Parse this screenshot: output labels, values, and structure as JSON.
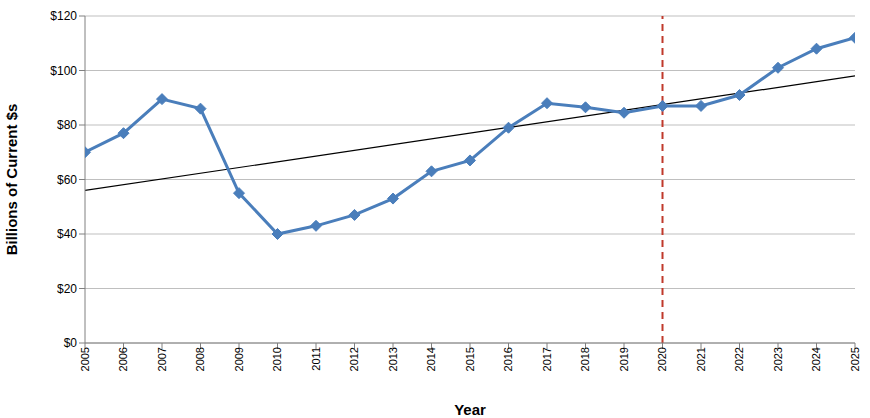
{
  "chart_data": {
    "type": "line",
    "x_label": "Year",
    "y_label": "Billions of Current $s",
    "x": [
      2005,
      2006,
      2007,
      2008,
      2009,
      2010,
      2011,
      2012,
      2013,
      2014,
      2015,
      2016,
      2017,
      2018,
      2019,
      2020,
      2021,
      2022,
      2023,
      2024,
      2025
    ],
    "values": [
      70,
      77,
      89.5,
      86,
      55,
      40,
      43,
      47,
      53,
      63,
      67,
      79,
      88,
      86.5,
      84.5,
      87,
      87,
      91,
      101,
      108,
      112
    ],
    "color": "#4a7ebb",
    "marker": "diamond",
    "xlim": [
      2005,
      2025
    ],
    "xticks": [
      2005,
      2006,
      2007,
      2008,
      2009,
      2010,
      2011,
      2012,
      2013,
      2014,
      2015,
      2016,
      2017,
      2018,
      2019,
      2020,
      2021,
      2022,
      2023,
      2024,
      2025
    ],
    "ylim": [
      0,
      120
    ],
    "yticks": [
      {
        "value": 0,
        "label": "$0"
      },
      {
        "value": 20,
        "label": "$20"
      },
      {
        "value": 40,
        "label": "$40"
      },
      {
        "value": 60,
        "label": "$60"
      },
      {
        "value": 80,
        "label": "$80"
      },
      {
        "value": 100,
        "label": "$100"
      },
      {
        "value": 120,
        "label": "$120"
      }
    ],
    "grid": true,
    "trend_line": {
      "x": [
        2005,
        2025
      ],
      "values": [
        56,
        98
      ],
      "color": "#000000"
    },
    "reference_line": {
      "x": 2020,
      "color": "#c0392b",
      "line_style": "dashed"
    }
  }
}
